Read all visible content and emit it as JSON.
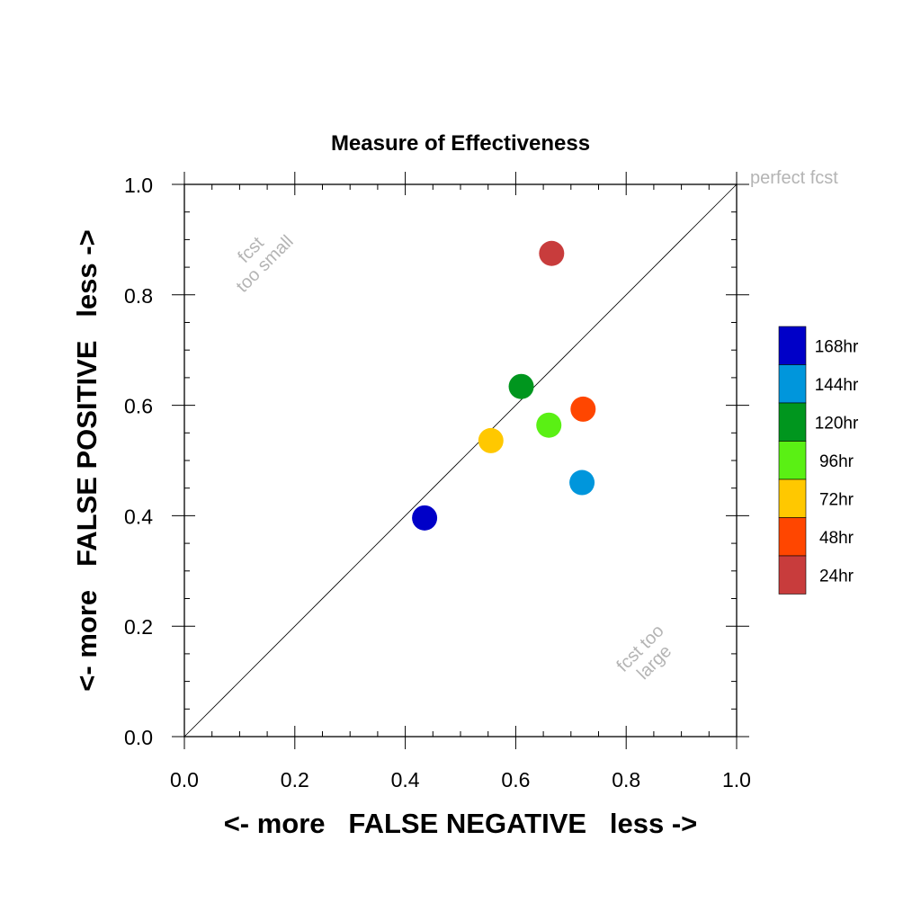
{
  "chart_data": {
    "type": "scatter",
    "title": "Measure of Effectiveness",
    "xlabel": "<- more   FALSE NEGATIVE   less ->",
    "ylabel": "<- more   FALSE POSITIVE   less ->",
    "xlim": [
      0.0,
      1.0
    ],
    "ylim": [
      0.0,
      1.0
    ],
    "xticks": [
      "0.0",
      "0.2",
      "0.4",
      "0.6",
      "0.8",
      "1.0"
    ],
    "yticks": [
      "0.0",
      "0.2",
      "0.4",
      "0.6",
      "0.8",
      "1.0"
    ],
    "grid": false,
    "diagonal_line": true,
    "legend_position": "right",
    "annotations": {
      "perfect": "perfect fcst",
      "small_line1": "fcst",
      "small_line2": "too small",
      "large_line1": "fcst too",
      "large_line2": "large"
    },
    "series": [
      {
        "name": "168hr",
        "color": "#0000c8",
        "x": 0.435,
        "y": 0.396
      },
      {
        "name": "144hr",
        "color": "#0096dc",
        "x": 0.72,
        "y": 0.46
      },
      {
        "name": "120hr",
        "color": "#00961e",
        "x": 0.61,
        "y": 0.634
      },
      {
        "name": "96hr",
        "color": "#5af014",
        "x": 0.66,
        "y": 0.564
      },
      {
        "name": "72hr",
        "color": "#ffc800",
        "x": 0.555,
        "y": 0.536
      },
      {
        "name": "48hr",
        "color": "#ff4600",
        "x": 0.722,
        "y": 0.593
      },
      {
        "name": "24hr",
        "color": "#c83c3c",
        "x": 0.665,
        "y": 0.875
      }
    ]
  }
}
